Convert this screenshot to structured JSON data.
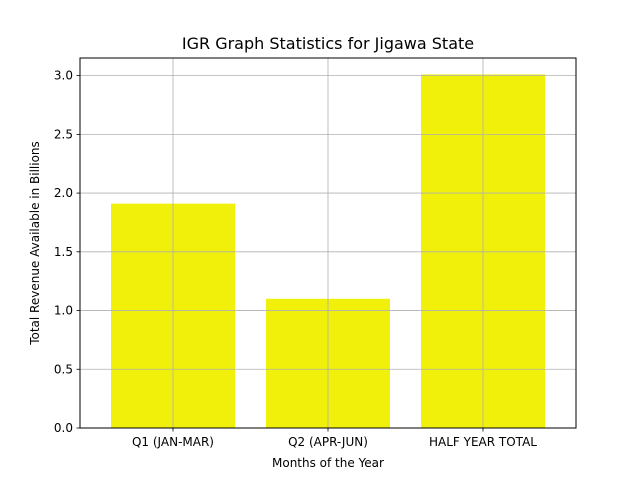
{
  "chart_data": {
    "type": "bar",
    "title": "IGR Graph Statistics for Jigawa State",
    "xlabel": "Months of the Year",
    "ylabel": "Total Revenue Available in Billions",
    "categories": [
      "Q1 (JAN-MAR)",
      "Q2 (APR-JUN)",
      "HALF YEAR TOTAL"
    ],
    "values": [
      1.91,
      1.1,
      3.01
    ],
    "ylim": [
      0,
      3.15
    ],
    "yticks": [
      "0.0",
      "0.5",
      "1.0",
      "1.5",
      "2.0",
      "2.5",
      "3.0"
    ],
    "grid": true,
    "bar_color": "#f0f00a",
    "grid_color": "#b0b0b0"
  }
}
